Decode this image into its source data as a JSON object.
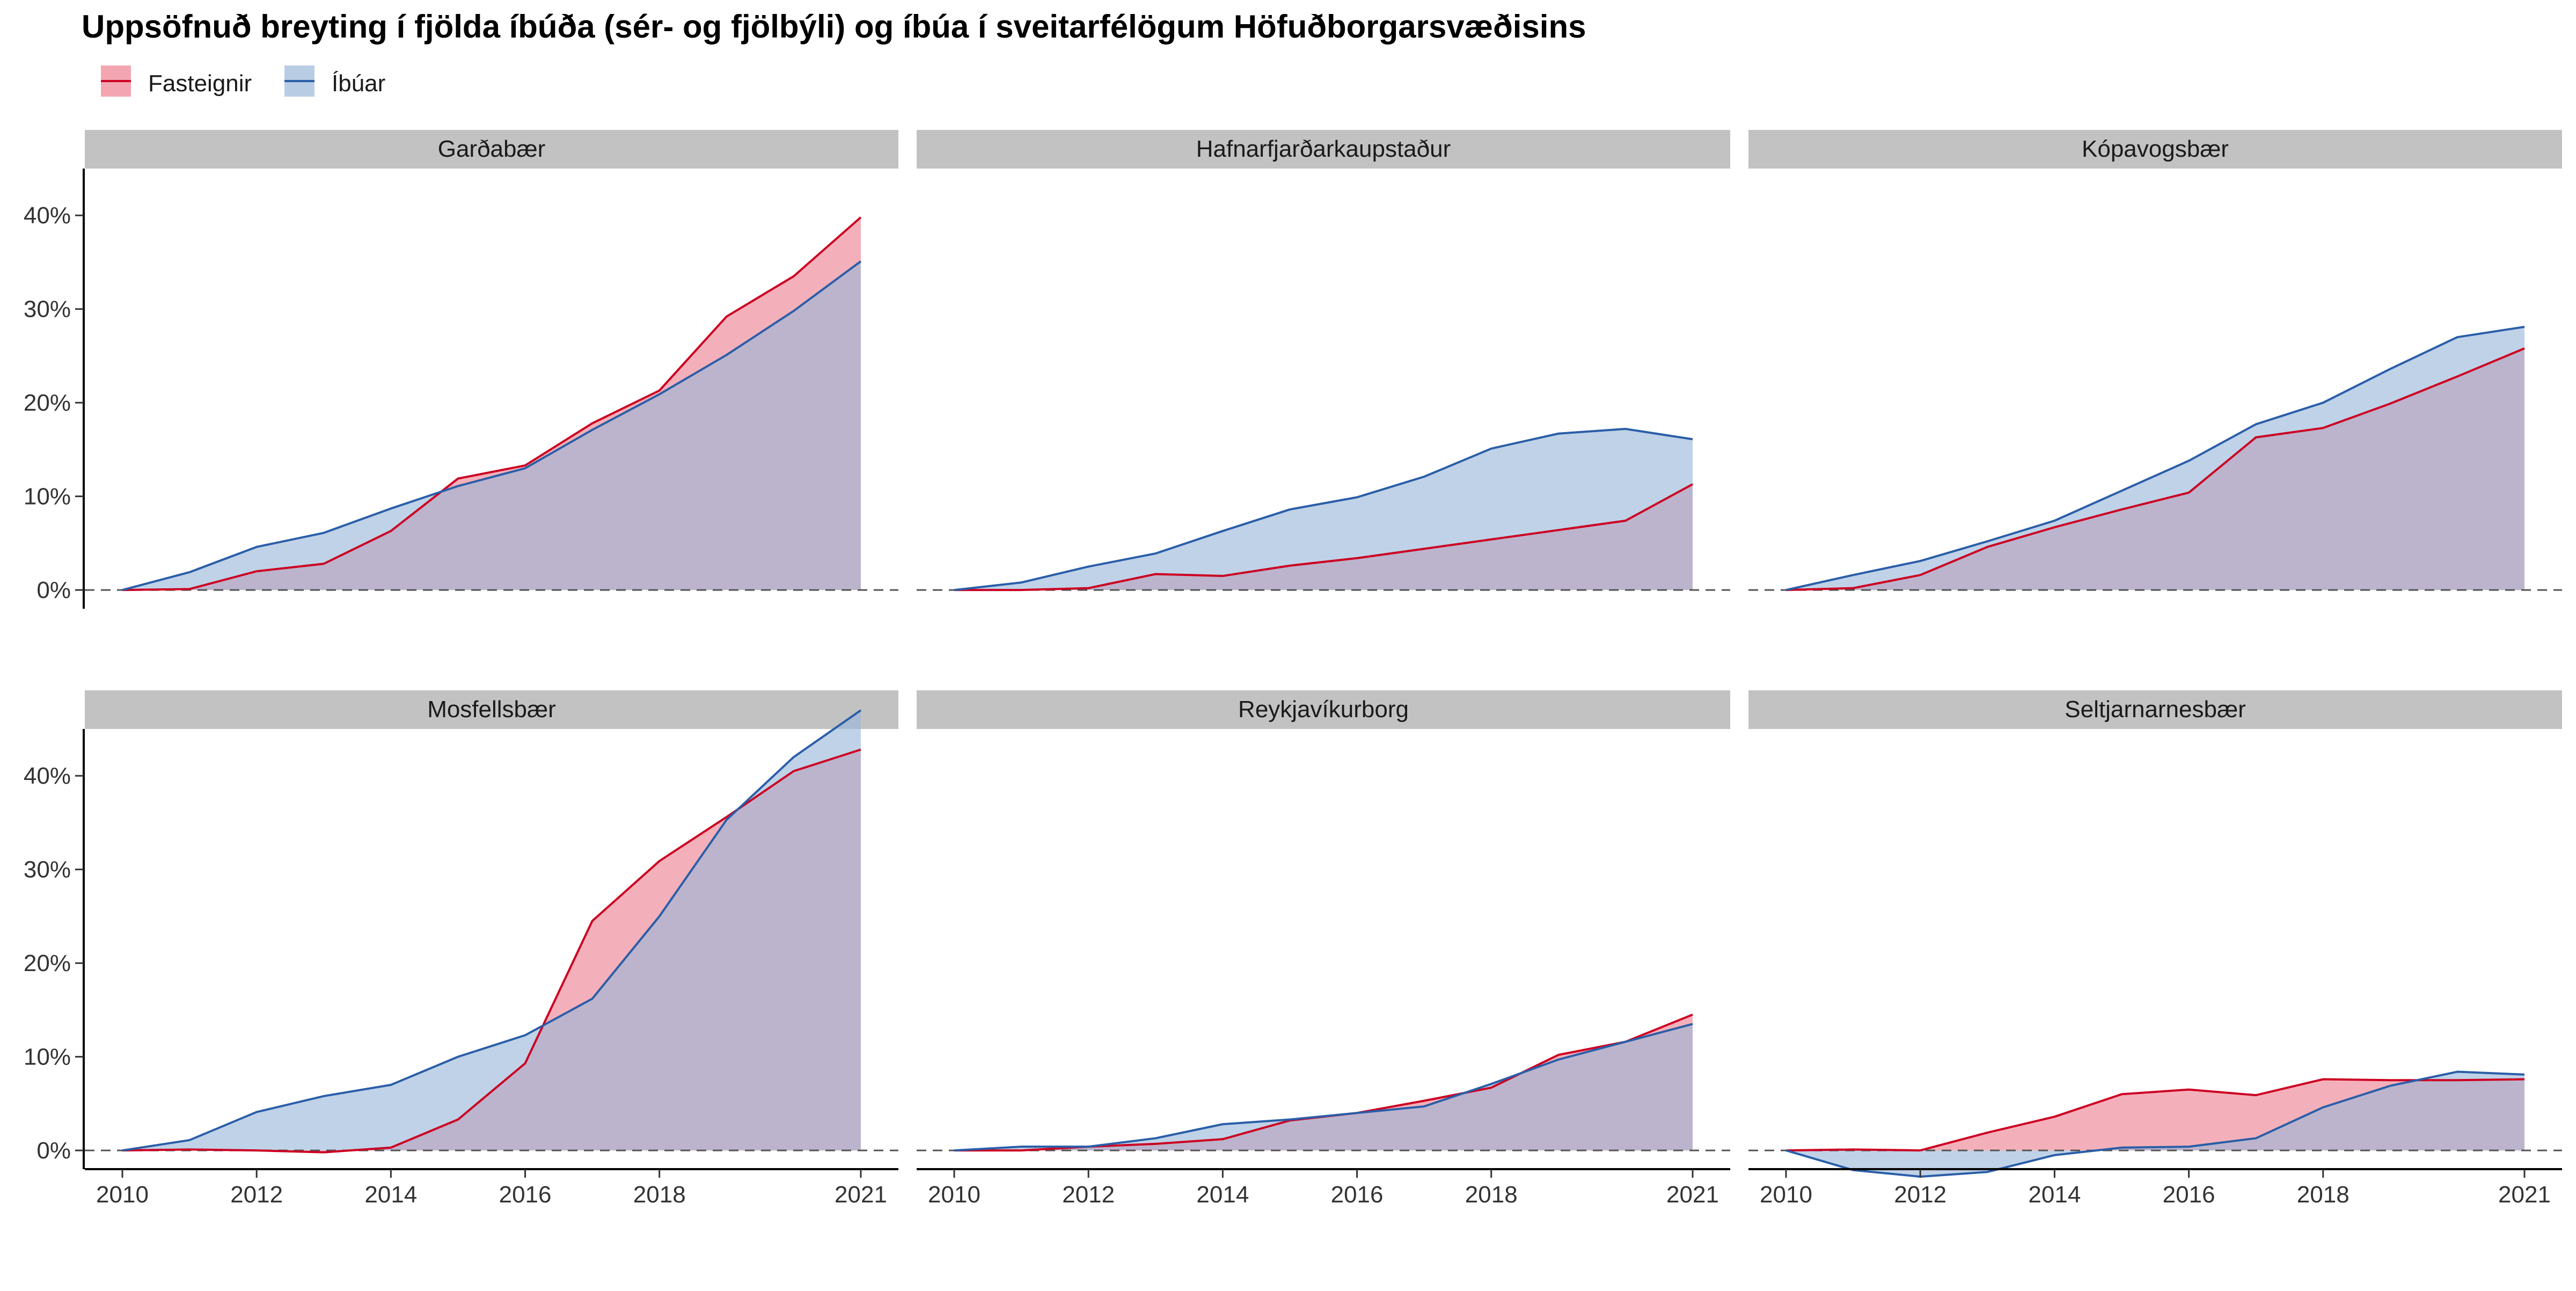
{
  "chart_data": {
    "type": "area",
    "title": "Uppsöfnuð breyting í fjölda íbúða (sér- og fjölbýli) og íbúa í sveitarfélögum Höfuðborgarsvæðisins",
    "xlabel": "",
    "ylabel": "",
    "legend_position": "top-left",
    "grid": false,
    "x_ticks": [
      "2010",
      "2012",
      "2014",
      "2016",
      "2018",
      "2021"
    ],
    "y_ticks": [
      "0%",
      "10%",
      "20%",
      "30%",
      "40%"
    ],
    "zero_line": "dashed",
    "x": [
      2010,
      2011,
      2012,
      2013,
      2014,
      2015,
      2016,
      2017,
      2018,
      2019,
      2020,
      2021
    ],
    "series_meta": [
      {
        "name": "Fasteignir",
        "line_color": "#cc0022",
        "fill_color": "#ee8090"
      },
      {
        "name": "Íbúar",
        "line_color": "#2a5ea8",
        "fill_color": "#9ab6d8"
      }
    ],
    "overlap_color": "#b59bb2",
    "panels": [
      {
        "name": "Garðabær",
        "row": 0,
        "col": 0,
        "ylim": [
          -0.02,
          0.45
        ],
        "series": [
          {
            "name": "Fasteignir",
            "values": [
              0,
              0.001,
              0.02,
              0.028,
              0.063,
              0.119,
              0.133,
              0.178,
              0.213,
              0.292,
              0.335,
              0.398
            ]
          },
          {
            "name": "Íbúar",
            "values": [
              0,
              0.019,
              0.046,
              0.061,
              0.087,
              0.111,
              0.13,
              0.171,
              0.209,
              0.251,
              0.298,
              0.351
            ]
          }
        ]
      },
      {
        "name": "Hafnarfjarðarkaupstaður",
        "row": 0,
        "col": 1,
        "ylim": [
          -0.02,
          0.45
        ],
        "series": [
          {
            "name": "Fasteignir",
            "values": [
              0,
              0,
              0.002,
              0.017,
              0.015,
              0.026,
              0.034,
              0.044,
              0.054,
              0.064,
              0.074,
              0.113
            ]
          },
          {
            "name": "Íbúar",
            "values": [
              0,
              0.008,
              0.025,
              0.039,
              0.063,
              0.086,
              0.099,
              0.121,
              0.151,
              0.167,
              0.172,
              0.161
            ]
          }
        ]
      },
      {
        "name": "Kópavogsbær",
        "row": 0,
        "col": 2,
        "ylim": [
          -0.02,
          0.45
        ],
        "series": [
          {
            "name": "Fasteignir",
            "values": [
              0,
              0.002,
              0.016,
              0.046,
              0.067,
              0.086,
              0.104,
              0.163,
              0.173,
              0.199,
              0.228,
              0.258
            ]
          },
          {
            "name": "Íbúar",
            "values": [
              0,
              0.016,
              0.031,
              0.052,
              0.074,
              0.106,
              0.138,
              0.177,
              0.2,
              0.236,
              0.27,
              0.281
            ]
          }
        ]
      },
      {
        "name": "Mosfellsbær",
        "row": 1,
        "col": 0,
        "ylim": [
          -0.02,
          0.45
        ],
        "series": [
          {
            "name": "Fasteignir",
            "values": [
              0,
              0.001,
              0,
              -0.002,
              0.003,
              0.033,
              0.093,
              0.245,
              0.309,
              0.356,
              0.405,
              0.428
            ]
          },
          {
            "name": "Íbúar",
            "values": [
              0,
              0.011,
              0.041,
              0.058,
              0.07,
              0.1,
              0.123,
              0.162,
              0.25,
              0.353,
              0.42,
              0.47
            ]
          }
        ]
      },
      {
        "name": "Reykjavíkurborg",
        "row": 1,
        "col": 1,
        "ylim": [
          -0.02,
          0.45
        ],
        "series": [
          {
            "name": "Fasteignir",
            "values": [
              0,
              0,
              0.004,
              0.007,
              0.012,
              0.032,
              0.04,
              0.053,
              0.067,
              0.102,
              0.116,
              0.145
            ]
          },
          {
            "name": "Íbúar",
            "values": [
              0,
              0.004,
              0.004,
              0.013,
              0.028,
              0.033,
              0.04,
              0.047,
              0.071,
              0.097,
              0.116,
              0.135
            ]
          }
        ]
      },
      {
        "name": "Seltjarnarnesbær",
        "row": 1,
        "col": 2,
        "ylim": [
          -0.02,
          0.45
        ],
        "series": [
          {
            "name": "Fasteignir",
            "values": [
              0,
              0.001,
              0,
              0.019,
              0.036,
              0.06,
              0.065,
              0.059,
              0.076,
              0.075,
              0.075,
              0.076
            ]
          },
          {
            "name": "Íbúar",
            "values": [
              0,
              -0.021,
              -0.028,
              -0.023,
              -0.005,
              0.003,
              0.004,
              0.013,
              0.046,
              0.069,
              0.084,
              0.081
            ]
          }
        ]
      }
    ]
  }
}
